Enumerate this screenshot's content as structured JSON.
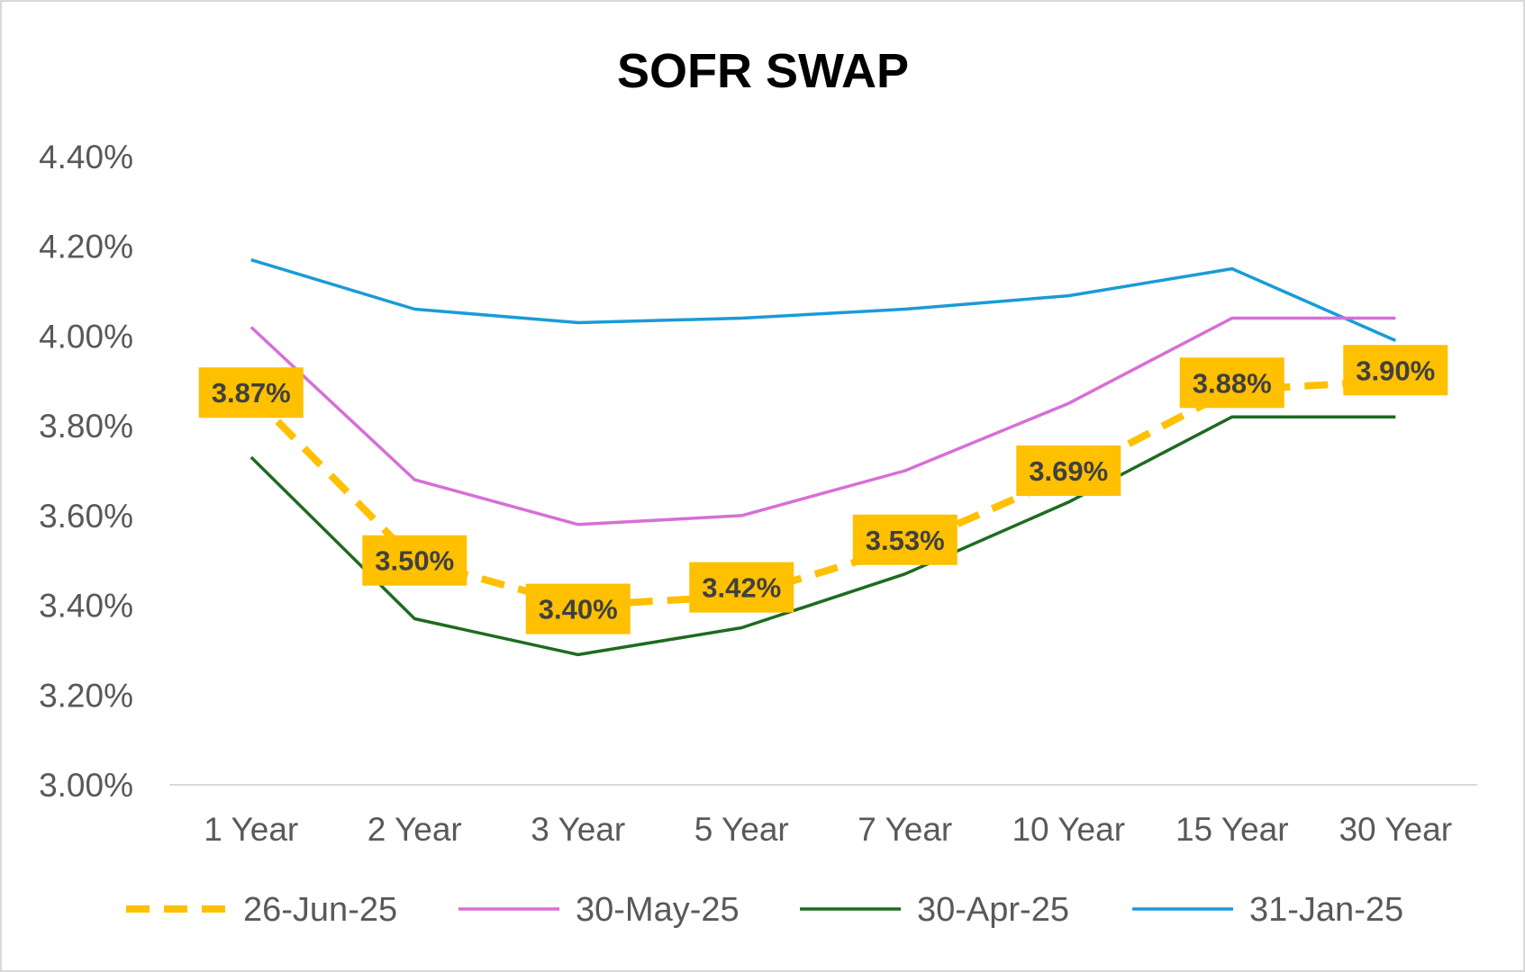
{
  "chart_data": {
    "type": "line",
    "title": "SOFR SWAP",
    "xlabel": "",
    "ylabel": "",
    "categories": [
      "1 Year",
      "2 Year",
      "3 Year",
      "5 Year",
      "7 Year",
      "10 Year",
      "15 Year",
      "30 Year"
    ],
    "ylim": [
      3.0,
      4.4
    ],
    "yticks": [
      "3.00%",
      "3.20%",
      "3.40%",
      "3.60%",
      "3.80%",
      "4.00%",
      "4.20%",
      "4.40%"
    ],
    "grid": false,
    "legend_position": "bottom",
    "series": [
      {
        "name": "26-Jun-25",
        "values": [
          3.87,
          3.5,
          3.4,
          3.42,
          3.53,
          3.69,
          3.88,
          3.9
        ],
        "labels": [
          "3.87%",
          "3.50%",
          "3.40%",
          "3.42%",
          "3.53%",
          "3.69%",
          "3.88%",
          "3.90%"
        ],
        "color": "#ffc000",
        "style": "dashed"
      },
      {
        "name": "30-May-25",
        "values": [
          4.02,
          3.68,
          3.58,
          3.6,
          3.7,
          3.85,
          4.04,
          4.04
        ],
        "color": "#d76fd6",
        "style": "solid"
      },
      {
        "name": "30-Apr-25",
        "values": [
          3.73,
          3.37,
          3.29,
          3.35,
          3.47,
          3.63,
          3.82,
          3.82
        ],
        "color": "#1e6b20",
        "style": "solid"
      },
      {
        "name": "31-Jan-25",
        "values": [
          4.17,
          4.06,
          4.03,
          4.04,
          4.06,
          4.09,
          4.15,
          3.99
        ],
        "color": "#1a9bd7",
        "style": "solid"
      }
    ]
  }
}
